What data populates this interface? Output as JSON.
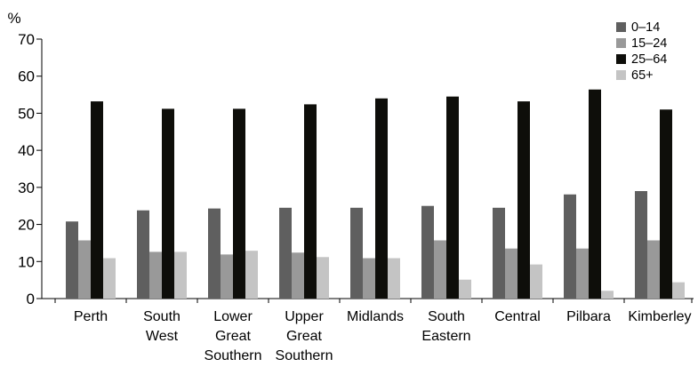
{
  "chart_data": {
    "type": "bar",
    "y_unit": "%",
    "ylim": [
      0,
      70
    ],
    "yticks": [
      0,
      10,
      20,
      30,
      40,
      50,
      60,
      70
    ],
    "grid": false,
    "legend_position": "top-right",
    "categories": [
      [
        "Perth"
      ],
      [
        "South",
        "West"
      ],
      [
        "Lower",
        "Great",
        "Southern"
      ],
      [
        "Upper",
        "Great",
        "Southern"
      ],
      [
        "Midlands"
      ],
      [
        "South",
        "Eastern"
      ],
      [
        "Central"
      ],
      [
        "Pilbara"
      ],
      [
        "Kimberley"
      ]
    ],
    "series": [
      {
        "name": "0–14",
        "color": "#5f5f5f",
        "values": [
          20.8,
          23.8,
          24.3,
          24.5,
          24.5,
          25.0,
          24.5,
          28.1,
          29.0
        ]
      },
      {
        "name": "15–24",
        "color": "#999999",
        "values": [
          15.7,
          12.6,
          11.9,
          12.4,
          10.9,
          15.7,
          13.5,
          13.5,
          15.7
        ]
      },
      {
        "name": "25–64",
        "color": "#0e0e0a",
        "values": [
          53.2,
          51.2,
          51.2,
          52.4,
          54.0,
          54.5,
          53.2,
          56.4,
          51.0
        ]
      },
      {
        "name": "65+",
        "color": "#c4c4c4",
        "values": [
          10.9,
          12.6,
          12.9,
          11.2,
          10.9,
          5.1,
          9.2,
          2.1,
          4.4
        ]
      }
    ]
  }
}
